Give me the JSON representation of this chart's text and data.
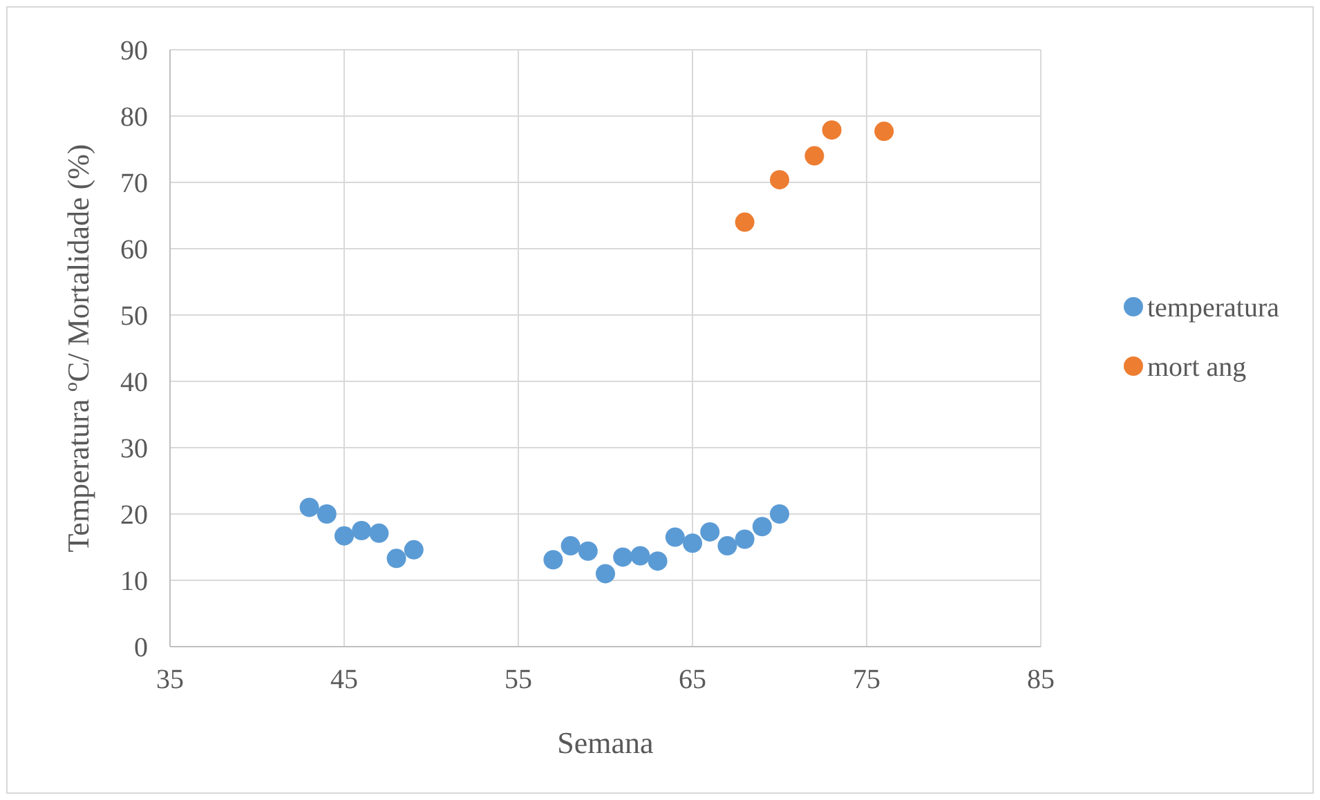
{
  "chart_data": {
    "type": "scatter",
    "xlabel": "Semana",
    "ylabel": "Temperatura ºC/ Mortalidade (%)",
    "xlim": [
      35,
      85
    ],
    "xticks": [
      35,
      45,
      55,
      65,
      75,
      85
    ],
    "ylim": [
      0,
      90
    ],
    "yticks": [
      0,
      10,
      20,
      30,
      40,
      50,
      60,
      70,
      80,
      90
    ],
    "grid": true,
    "legend": "right",
    "marker": "circle",
    "series": [
      {
        "name": "temperatura",
        "color": "#5b9bd5",
        "x": [
          43,
          44,
          45,
          46,
          47,
          48,
          49,
          57,
          58,
          59,
          60,
          61,
          62,
          63,
          64,
          65,
          66,
          67,
          68,
          69,
          70
        ],
        "values": [
          21.0,
          20.0,
          16.7,
          17.5,
          17.1,
          13.3,
          14.6,
          13.1,
          15.2,
          14.4,
          11.0,
          13.5,
          13.7,
          12.9,
          16.5,
          15.6,
          17.3,
          15.2,
          16.2,
          18.1,
          20.0
        ]
      },
      {
        "name": "mort ang",
        "color": "#ed7d31",
        "x": [
          68,
          70,
          72,
          73,
          76
        ],
        "values": [
          64.0,
          70.4,
          74.0,
          77.9,
          77.7
        ]
      }
    ]
  }
}
